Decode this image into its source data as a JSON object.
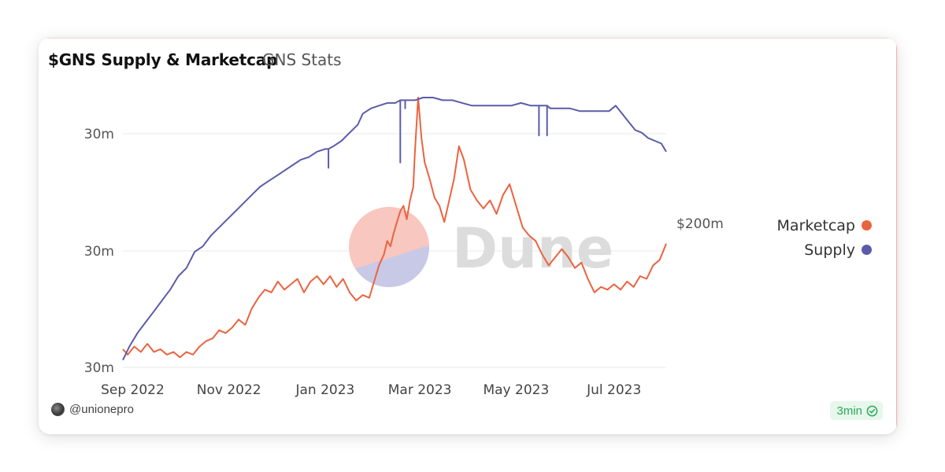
{
  "header": {
    "title": "$GNS Supply & Marketcap",
    "subtitle": "GNS Stats"
  },
  "footer": {
    "author": "@unionepro",
    "refresh": "3min"
  },
  "watermark": "Dune",
  "colors": {
    "marketcap": "#ea6340",
    "supply": "#5b5ca8",
    "grid": "#e9e9ee",
    "badge_text": "#2ba85a"
  },
  "chart_data": {
    "type": "line",
    "x_labels": [
      "Sep 2022",
      "Nov 2022",
      "Jan 2023",
      "Mar 2023",
      "May 2023",
      "Jul 2023"
    ],
    "left_axis_ticks": [
      "30m",
      "30m",
      "30m"
    ],
    "right_axis_ticks": [
      "$200m"
    ],
    "legend_placement": "right",
    "grid": true,
    "x_range": [
      "2022-09-01",
      "2023-07-31"
    ],
    "series": [
      {
        "name": "Marketcap",
        "axis": "right",
        "points": [
          [
            "2022-09-01",
            0.93
          ],
          [
            "2022-09-04",
            0.95
          ],
          [
            "2022-09-08",
            0.92
          ],
          [
            "2022-09-12",
            0.94
          ],
          [
            "2022-09-16",
            0.91
          ],
          [
            "2022-09-20",
            0.94
          ],
          [
            "2022-09-24",
            0.93
          ],
          [
            "2022-09-28",
            0.95
          ],
          [
            "2022-10-02",
            0.94
          ],
          [
            "2022-10-06",
            0.96
          ],
          [
            "2022-10-10",
            0.94
          ],
          [
            "2022-10-14",
            0.95
          ],
          [
            "2022-10-18",
            0.92
          ],
          [
            "2022-10-22",
            0.9
          ],
          [
            "2022-10-26",
            0.89
          ],
          [
            "2022-10-30",
            0.86
          ],
          [
            "2022-11-03",
            0.87
          ],
          [
            "2022-11-07",
            0.85
          ],
          [
            "2022-11-11",
            0.82
          ],
          [
            "2022-11-15",
            0.84
          ],
          [
            "2022-11-19",
            0.78
          ],
          [
            "2022-11-23",
            0.74
          ],
          [
            "2022-11-27",
            0.71
          ],
          [
            "2022-12-01",
            0.72
          ],
          [
            "2022-12-05",
            0.68
          ],
          [
            "2022-12-09",
            0.71
          ],
          [
            "2022-12-13",
            0.69
          ],
          [
            "2022-12-17",
            0.67
          ],
          [
            "2022-12-21",
            0.72
          ],
          [
            "2022-12-25",
            0.68
          ],
          [
            "2022-12-29",
            0.66
          ],
          [
            "2023-01-02",
            0.69
          ],
          [
            "2023-01-06",
            0.66
          ],
          [
            "2023-01-10",
            0.7
          ],
          [
            "2023-01-14",
            0.67
          ],
          [
            "2023-01-18",
            0.72
          ],
          [
            "2023-01-22",
            0.75
          ],
          [
            "2023-01-26",
            0.73
          ],
          [
            "2023-01-30",
            0.74
          ],
          [
            "2023-02-02",
            0.68
          ],
          [
            "2023-02-05",
            0.62
          ],
          [
            "2023-02-08",
            0.58
          ],
          [
            "2023-02-10",
            0.53
          ],
          [
            "2023-02-12",
            0.55
          ],
          [
            "2023-02-14",
            0.5
          ],
          [
            "2023-02-16",
            0.46
          ],
          [
            "2023-02-18",
            0.42
          ],
          [
            "2023-02-20",
            0.4
          ],
          [
            "2023-02-22",
            0.45
          ],
          [
            "2023-02-24",
            0.38
          ],
          [
            "2023-02-26",
            0.33
          ],
          [
            "2023-02-27",
            0.2
          ],
          [
            "2023-03-01",
            0.0
          ],
          [
            "2023-03-03",
            0.15
          ],
          [
            "2023-03-05",
            0.24
          ],
          [
            "2023-03-08",
            0.3
          ],
          [
            "2023-03-11",
            0.37
          ],
          [
            "2023-03-14",
            0.4
          ],
          [
            "2023-03-17",
            0.46
          ],
          [
            "2023-03-20",
            0.38
          ],
          [
            "2023-03-23",
            0.3
          ],
          [
            "2023-03-26",
            0.18
          ],
          [
            "2023-03-29",
            0.23
          ],
          [
            "2023-04-02",
            0.34
          ],
          [
            "2023-04-06",
            0.38
          ],
          [
            "2023-04-10",
            0.41
          ],
          [
            "2023-04-14",
            0.38
          ],
          [
            "2023-04-18",
            0.43
          ],
          [
            "2023-04-22",
            0.36
          ],
          [
            "2023-04-26",
            0.32
          ],
          [
            "2023-04-30",
            0.4
          ],
          [
            "2023-05-04",
            0.48
          ],
          [
            "2023-05-08",
            0.51
          ],
          [
            "2023-05-12",
            0.53
          ],
          [
            "2023-05-16",
            0.58
          ],
          [
            "2023-05-20",
            0.62
          ],
          [
            "2023-05-24",
            0.59
          ],
          [
            "2023-05-28",
            0.56
          ],
          [
            "2023-06-01",
            0.59
          ],
          [
            "2023-06-05",
            0.63
          ],
          [
            "2023-06-09",
            0.61
          ],
          [
            "2023-06-13",
            0.67
          ],
          [
            "2023-06-17",
            0.72
          ],
          [
            "2023-06-21",
            0.7
          ],
          [
            "2023-06-25",
            0.71
          ],
          [
            "2023-06-29",
            0.69
          ],
          [
            "2023-07-03",
            0.71
          ],
          [
            "2023-07-07",
            0.68
          ],
          [
            "2023-07-11",
            0.7
          ],
          [
            "2023-07-15",
            0.66
          ],
          [
            "2023-07-19",
            0.67
          ],
          [
            "2023-07-23",
            0.62
          ],
          [
            "2023-07-27",
            0.6
          ],
          [
            "2023-07-31",
            0.54
          ]
        ]
      },
      {
        "name": "Supply",
        "axis": "left",
        "points": [
          [
            "2022-09-01",
            0.97
          ],
          [
            "2022-09-05",
            0.92
          ],
          [
            "2022-09-10",
            0.87
          ],
          [
            "2022-09-15",
            0.83
          ],
          [
            "2022-09-20",
            0.79
          ],
          [
            "2022-09-25",
            0.75
          ],
          [
            "2022-09-30",
            0.71
          ],
          [
            "2022-10-05",
            0.66
          ],
          [
            "2022-10-10",
            0.63
          ],
          [
            "2022-10-15",
            0.57
          ],
          [
            "2022-10-20",
            0.55
          ],
          [
            "2022-10-25",
            0.51
          ],
          [
            "2022-10-30",
            0.48
          ],
          [
            "2022-11-04",
            0.45
          ],
          [
            "2022-11-09",
            0.42
          ],
          [
            "2022-11-14",
            0.39
          ],
          [
            "2022-11-19",
            0.36
          ],
          [
            "2022-11-24",
            0.33
          ],
          [
            "2022-11-29",
            0.31
          ],
          [
            "2022-12-04",
            0.29
          ],
          [
            "2022-12-09",
            0.27
          ],
          [
            "2022-12-14",
            0.25
          ],
          [
            "2022-12-19",
            0.23
          ],
          [
            "2022-12-24",
            0.22
          ],
          [
            "2022-12-29",
            0.2
          ],
          [
            "2023-01-03",
            0.19
          ],
          [
            "2023-01-08",
            0.18
          ],
          [
            "2023-01-13",
            0.16
          ],
          [
            "2023-01-18",
            0.13
          ],
          [
            "2023-01-23",
            0.1
          ],
          [
            "2023-01-26",
            0.06
          ],
          [
            "2023-01-31",
            0.04
          ],
          [
            "2023-02-05",
            0.03
          ],
          [
            "2023-02-10",
            0.02
          ],
          [
            "2023-02-15",
            0.02
          ],
          [
            "2023-02-18",
            0.01
          ],
          [
            "2023-02-22",
            0.01
          ],
          [
            "2023-02-27",
            0.01
          ],
          [
            "2023-03-04",
            0.0
          ],
          [
            "2023-03-10",
            0.0
          ],
          [
            "2023-03-16",
            0.01
          ],
          [
            "2023-03-22",
            0.01
          ],
          [
            "2023-03-28",
            0.02
          ],
          [
            "2023-04-03",
            0.03
          ],
          [
            "2023-04-09",
            0.03
          ],
          [
            "2023-04-15",
            0.03
          ],
          [
            "2023-04-21",
            0.03
          ],
          [
            "2023-04-27",
            0.03
          ],
          [
            "2023-05-03",
            0.02
          ],
          [
            "2023-05-09",
            0.03
          ],
          [
            "2023-05-15",
            0.03
          ],
          [
            "2023-05-21",
            0.04
          ],
          [
            "2023-05-27",
            0.04
          ],
          [
            "2023-06-02",
            0.04
          ],
          [
            "2023-06-08",
            0.05
          ],
          [
            "2023-06-14",
            0.05
          ],
          [
            "2023-06-20",
            0.05
          ],
          [
            "2023-06-26",
            0.05
          ],
          [
            "2023-06-30",
            0.03
          ],
          [
            "2023-07-04",
            0.06
          ],
          [
            "2023-07-08",
            0.09
          ],
          [
            "2023-07-12",
            0.12
          ],
          [
            "2023-07-16",
            0.13
          ],
          [
            "2023-07-20",
            0.15
          ],
          [
            "2023-07-24",
            0.16
          ],
          [
            "2023-07-28",
            0.17
          ],
          [
            "2023-07-31",
            0.2
          ]
        ],
        "dips": [
          [
            "2023-01-05",
            0.26
          ],
          [
            "2023-02-18",
            0.24
          ],
          [
            "2023-02-21",
            0.04
          ],
          [
            "2023-05-14",
            0.14
          ],
          [
            "2023-05-19",
            0.14
          ]
        ]
      }
    ]
  }
}
